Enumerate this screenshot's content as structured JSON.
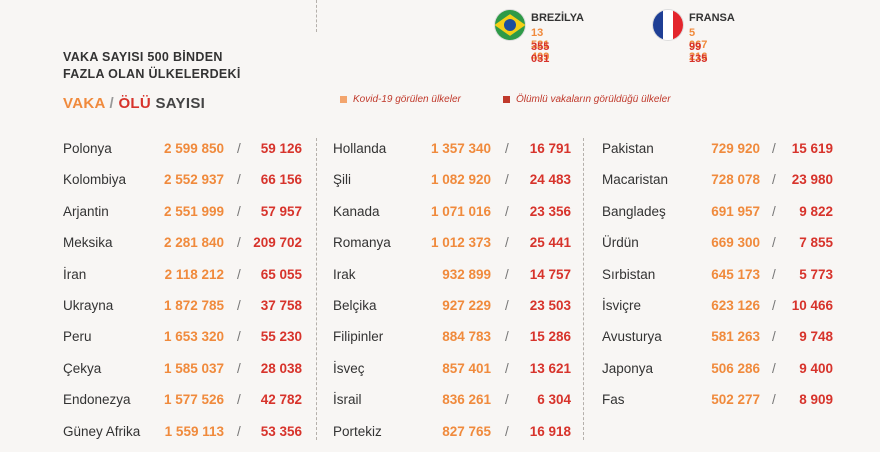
{
  "title_lines": [
    "VAKA SAYISI 500 BİNDEN",
    "FAZLA OLAN ÜLKELERDEKİ"
  ],
  "subtitle": {
    "vaka": "VAKA",
    "slash": "/",
    "olu": "ÖLÜ",
    "sayisi": "SAYISI"
  },
  "colors": {
    "case": "#f08a3c",
    "death": "#d7332b",
    "bg": "#f8f6f4"
  },
  "featured": [
    {
      "name": "BREZİLYA",
      "cases": "13 521 409",
      "deaths": "355 031",
      "flag": "brazil-flag-icon"
    },
    {
      "name": "FRANSA",
      "cases": "5 067 216",
      "deaths": "99 135",
      "flag": "france-flag-icon"
    }
  ],
  "legend": [
    {
      "label": "Kovid-19 görülen ülkeler",
      "color": "#f3a56d"
    },
    {
      "label": "Ölümlü vakaların görüldüğü ülkeler",
      "color": "#c0392b"
    }
  ],
  "columns": [
    [
      {
        "country": "Polonya",
        "cases": "2 599 850",
        "deaths": "59 126"
      },
      {
        "country": "Kolombiya",
        "cases": "2 552 937",
        "deaths": "66 156"
      },
      {
        "country": "Arjantin",
        "cases": "2 551 999",
        "deaths": "57 957"
      },
      {
        "country": "Meksika",
        "cases": "2 281 840",
        "deaths": "209 702"
      },
      {
        "country": "İran",
        "cases": "2 118 212",
        "deaths": "65 055"
      },
      {
        "country": "Ukrayna",
        "cases": "1 872 785",
        "deaths": "37 758"
      },
      {
        "country": "Peru",
        "cases": "1 653 320",
        "deaths": "55 230"
      },
      {
        "country": "Çekya",
        "cases": "1 585 037",
        "deaths": "28 038"
      },
      {
        "country": "Endonezya",
        "cases": "1 577 526",
        "deaths": "42 782"
      },
      {
        "country": "Güney Afrika",
        "cases": "1 559 113",
        "deaths": "53 356"
      }
    ],
    [
      {
        "country": "Hollanda",
        "cases": "1 357 340",
        "deaths": "16 791"
      },
      {
        "country": "Şili",
        "cases": "1 082 920",
        "deaths": "24 483"
      },
      {
        "country": "Kanada",
        "cases": "1 071 016",
        "deaths": "23 356"
      },
      {
        "country": "Romanya",
        "cases": "1 012 373",
        "deaths": "25 441"
      },
      {
        "country": "Irak",
        "cases": "932 899",
        "deaths": "14 757"
      },
      {
        "country": "Belçika",
        "cases": "927 229",
        "deaths": "23 503"
      },
      {
        "country": "Filipinler",
        "cases": "884 783",
        "deaths": "15 286"
      },
      {
        "country": "İsveç",
        "cases": "857 401",
        "deaths": "13 621"
      },
      {
        "country": "İsrail",
        "cases": "836 261",
        "deaths": "6 304"
      },
      {
        "country": "Portekiz",
        "cases": "827 765",
        "deaths": "16 918"
      }
    ],
    [
      {
        "country": "Pakistan",
        "cases": "729 920",
        "deaths": "15 619"
      },
      {
        "country": "Macaristan",
        "cases": "728 078",
        "deaths": "23 980"
      },
      {
        "country": "Bangladeş",
        "cases": "691 957",
        "deaths": "9 822"
      },
      {
        "country": "Ürdün",
        "cases": "669 300",
        "deaths": "7 855"
      },
      {
        "country": "Sırbistan",
        "cases": "645 173",
        "deaths": "5 773"
      },
      {
        "country": "İsviçre",
        "cases": "623 126",
        "deaths": "10 466"
      },
      {
        "country": "Avusturya",
        "cases": "581 263",
        "deaths": "9 748"
      },
      {
        "country": "Japonya",
        "cases": "506 286",
        "deaths": "9 400"
      },
      {
        "country": "Fas",
        "cases": "502 277",
        "deaths": "8 909"
      }
    ]
  ]
}
